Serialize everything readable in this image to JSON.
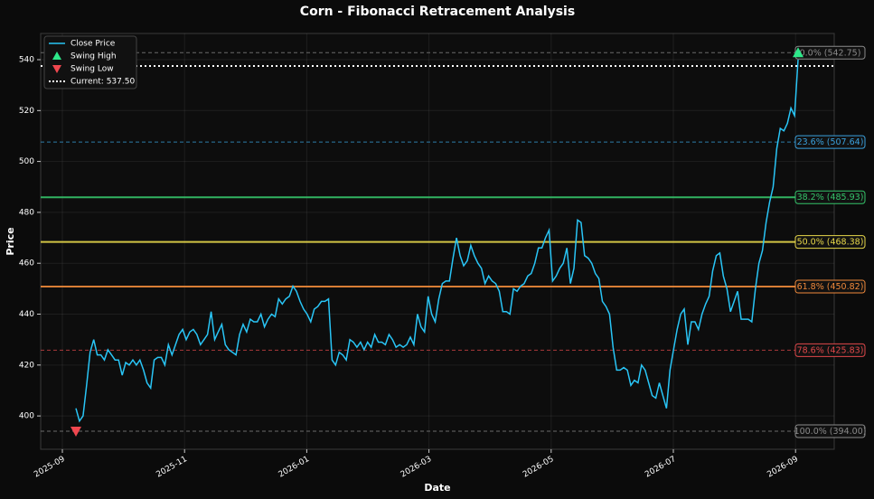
{
  "chart_data": {
    "type": "line",
    "title": "Corn - Fibonacci Retracement Analysis",
    "xlabel": "Date",
    "ylabel": "Price",
    "xticks": [
      "2025-09",
      "2025-11",
      "2026-01",
      "2026-03",
      "2026-05",
      "2026-07",
      "2026-09"
    ],
    "ylim": [
      386.9,
      550.3
    ],
    "yticks": [
      400,
      420,
      440,
      460,
      480,
      500,
      520,
      540
    ],
    "grid": true,
    "legend": "upper left",
    "series": [
      {
        "name": "Close Price",
        "color": "#29c5f6",
        "values": [
          403,
          398,
          400,
          412,
          425,
          430,
          424,
          424,
          422,
          426,
          424,
          422,
          422,
          416,
          421,
          420,
          422,
          420,
          422,
          418,
          413,
          411,
          422,
          423,
          423,
          420,
          428,
          424,
          428,
          432,
          434,
          430,
          433,
          434,
          432,
          428,
          430,
          432,
          441,
          430,
          433,
          436,
          428,
          426,
          425,
          424,
          432,
          436,
          433,
          438,
          437,
          437,
          440,
          435,
          438,
          440,
          439,
          446,
          444,
          446,
          447,
          451,
          449,
          445,
          442,
          440,
          437,
          442,
          443,
          445,
          445,
          446,
          422,
          420,
          425,
          424,
          422,
          430,
          429,
          427,
          429,
          426,
          429,
          427,
          432,
          429,
          429,
          428,
          432,
          430,
          427,
          428,
          427,
          428,
          431,
          428,
          440,
          435,
          433,
          447,
          440,
          437,
          446,
          452,
          453,
          453,
          462,
          470,
          463,
          459,
          461,
          467,
          463,
          460,
          458,
          452,
          455,
          453,
          452,
          449,
          441,
          441,
          440,
          450,
          449,
          451,
          452,
          455,
          456,
          460,
          466,
          466,
          470,
          473,
          453,
          455,
          458,
          460,
          466,
          452,
          458,
          477,
          476,
          463,
          462,
          460,
          456,
          454,
          445,
          443,
          440,
          427,
          418,
          418,
          419,
          418,
          412,
          414,
          413,
          420,
          418,
          413,
          408,
          407,
          413,
          408,
          403,
          418,
          426,
          434,
          440,
          442,
          428,
          437,
          437,
          434,
          440,
          444,
          447,
          457,
          463,
          464,
          455,
          450,
          441,
          445,
          449,
          438,
          438,
          438,
          437,
          450,
          460,
          465,
          476,
          484,
          490,
          505,
          513,
          512,
          515,
          521,
          518,
          540
        ]
      }
    ],
    "swing_high": {
      "name": "Swing High",
      "value": 542.75,
      "color": "#2ee88a"
    },
    "swing_low": {
      "name": "Swing Low",
      "value": 394.0,
      "color": "#f0474f"
    },
    "current": {
      "name": "Current: 537.50",
      "value": 537.5,
      "color": "#ffffff"
    },
    "levels": [
      {
        "value": 542.75,
        "label": "0.0% (542.75)",
        "color": "#8a8a8a",
        "style": "dashed"
      },
      {
        "value": 507.64,
        "label": "23.6% (507.64)",
        "color": "#3aa0dc",
        "style": "dashed"
      },
      {
        "value": 485.93,
        "label": "38.2% (485.93)",
        "color": "#35c46a",
        "style": "solid"
      },
      {
        "value": 468.38,
        "label": "50.0% (468.38)",
        "color": "#e8d84a",
        "style": "solid"
      },
      {
        "value": 450.82,
        "label": "61.8% (450.82)",
        "color": "#f0893a",
        "style": "solid"
      },
      {
        "value": 425.83,
        "label": "78.6% (425.83)",
        "color": "#e0484a",
        "style": "dashed"
      },
      {
        "value": 394.0,
        "label": "100.0% (394.00)",
        "color": "#8a8a8a",
        "style": "dashed"
      }
    ]
  }
}
